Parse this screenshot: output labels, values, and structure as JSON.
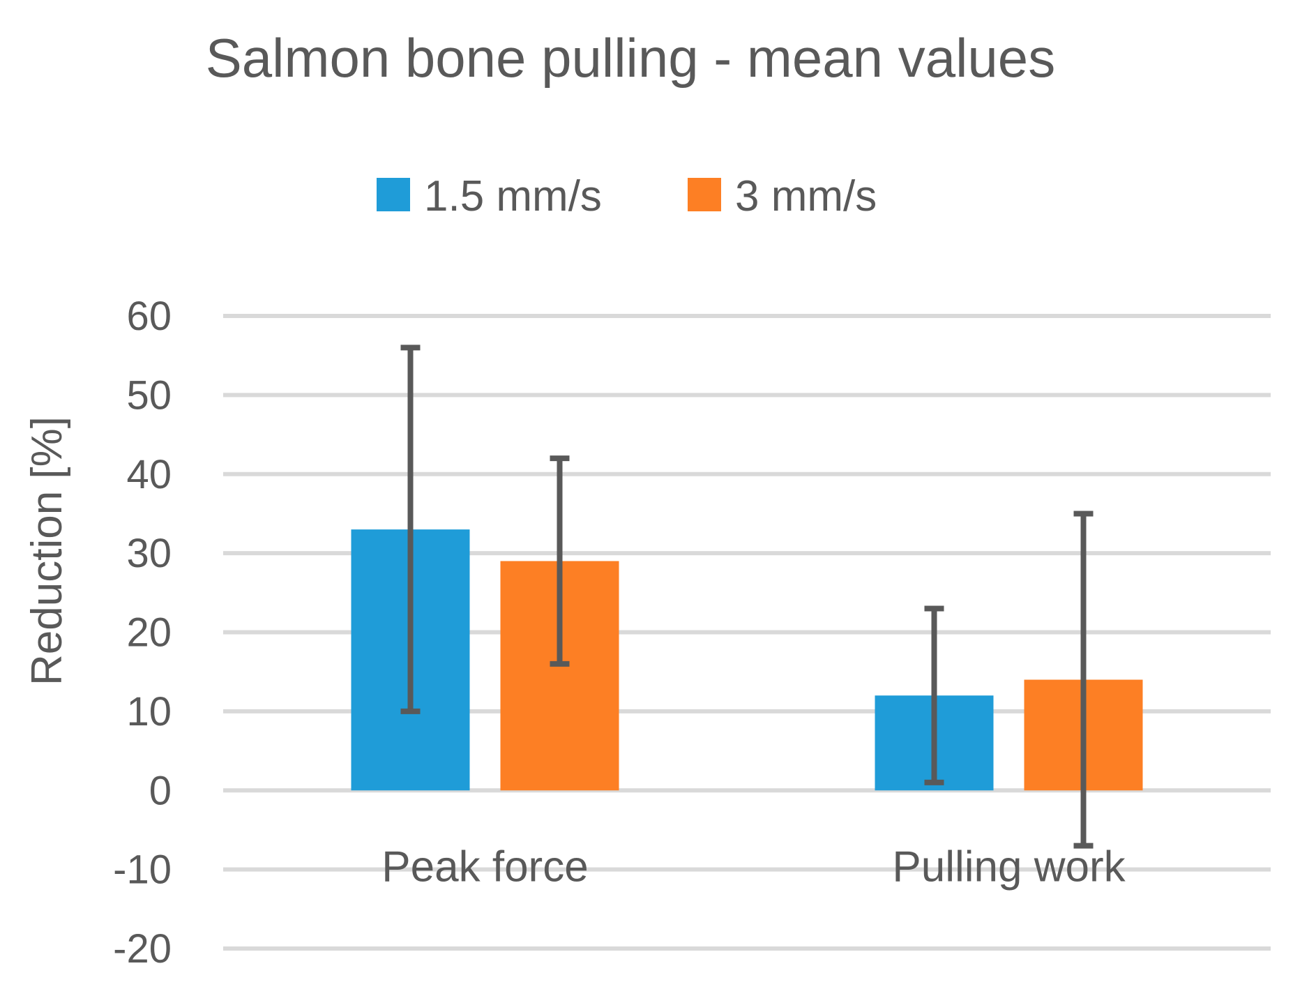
{
  "chart_data": {
    "type": "bar",
    "title": "Salmon bone pulling - mean values",
    "xlabel": "",
    "ylabel": "Reduction [%]",
    "categories": [
      "Peak force",
      "Pulling work"
    ],
    "series": [
      {
        "name": "1.5 mm/s",
        "color": "#1f9cd8",
        "values": [
          33,
          12
        ],
        "error_low": [
          10,
          1
        ],
        "error_high": [
          56,
          23
        ]
      },
      {
        "name": "3 mm/s",
        "color": "#fd7f24",
        "values": [
          29,
          14
        ],
        "error_low": [
          16,
          -7
        ],
        "error_high": [
          42,
          35
        ]
      }
    ],
    "ylim": [
      -20,
      60
    ],
    "yticks": [
      60,
      50,
      40,
      30,
      20,
      10,
      0,
      -10,
      -20
    ],
    "grid": true,
    "legend_position": "top",
    "colors": {
      "gridline": "#d9d9d9",
      "errorbar": "#595959",
      "text": "#595959"
    }
  }
}
